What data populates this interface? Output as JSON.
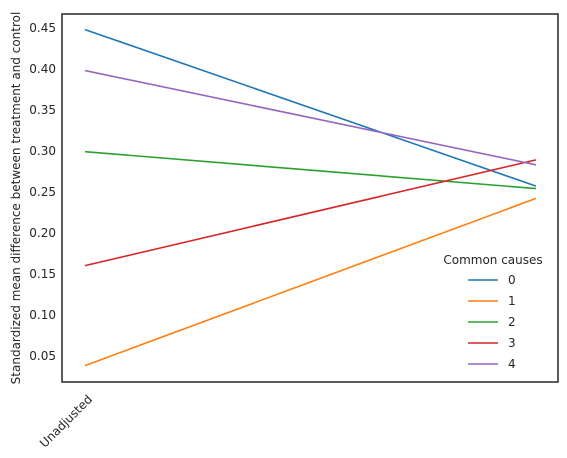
{
  "chart_data": {
    "type": "line",
    "title": "",
    "xlabel": "",
    "ylabel": "Standardized mean difference between treatment and control",
    "categories": [
      "Unadjusted",
      ""
    ],
    "ylim": [
      0.018,
      0.467
    ],
    "yticks": [
      0.05,
      0.1,
      0.15,
      0.2,
      0.25,
      0.3,
      0.35,
      0.4,
      0.45
    ],
    "ytick_labels": [
      "0.05",
      "0.10",
      "0.15",
      "0.20",
      "0.25",
      "0.30",
      "0.35",
      "0.40",
      "0.45"
    ],
    "grid": false,
    "legend": {
      "title": "Common causes",
      "placement": "lower-right"
    },
    "series": [
      {
        "name": "0",
        "color": "#1f77b4",
        "values": [
          0.448,
          0.257
        ]
      },
      {
        "name": "1",
        "color": "#ff7f0e",
        "values": [
          0.038,
          0.242
        ]
      },
      {
        "name": "2",
        "color": "#2ca02c",
        "values": [
          0.299,
          0.254
        ]
      },
      {
        "name": "3",
        "color": "#d62728",
        "values": [
          0.16,
          0.289
        ]
      },
      {
        "name": "4",
        "color": "#9467bd",
        "values": [
          0.398,
          0.283
        ]
      }
    ]
  }
}
